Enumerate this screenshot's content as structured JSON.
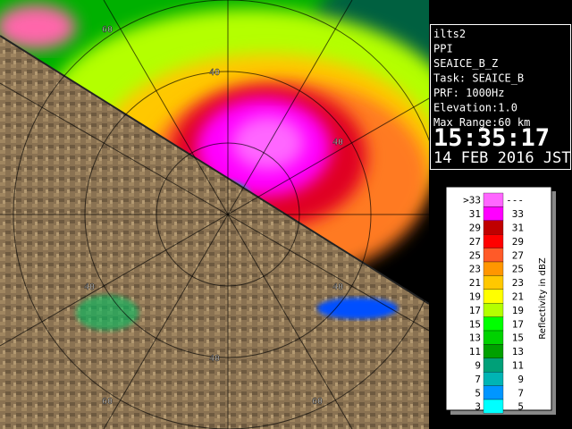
{
  "info": {
    "lines": [
      "ilts2",
      "PPI",
      "SEAICE_B_Z",
      "Task: SEAICE_B",
      "PRF: 1000Hz",
      "Elevation:1.0",
      "Max Range:60 km"
    ],
    "time": "15:35:17",
    "date": "14 FEB 2016 JST"
  },
  "ring_labels": [
    "60",
    "40",
    "40",
    "40",
    "40",
    "40",
    "60",
    "60"
  ],
  "legend": {
    "title": "Reflectivity in dBZ",
    "rows": [
      {
        "low": ">33",
        "high": "---",
        "color": "#ff66ff"
      },
      {
        "low": "31",
        "high": "33",
        "color": "#ff00ff"
      },
      {
        "low": "29",
        "high": "31",
        "color": "#c00000"
      },
      {
        "low": "27",
        "high": "29",
        "color": "#ff0000"
      },
      {
        "low": "25",
        "high": "27",
        "color": "#ff5a28"
      },
      {
        "low": "23",
        "high": "25",
        "color": "#ff9600"
      },
      {
        "low": "21",
        "high": "23",
        "color": "#ffc800"
      },
      {
        "low": "19",
        "high": "21",
        "color": "#ffff00"
      },
      {
        "low": "17",
        "high": "19",
        "color": "#b4ff00"
      },
      {
        "low": "15",
        "high": "17",
        "color": "#00ff00"
      },
      {
        "low": "13",
        "high": "15",
        "color": "#00d200"
      },
      {
        "low": "11",
        "high": "13",
        "color": "#00a000"
      },
      {
        "low": "9",
        "high": "11",
        "color": "#00a078"
      },
      {
        "low": "7",
        "high": "9",
        "color": "#00b4b4"
      },
      {
        "low": "5",
        "high": "7",
        "color": "#0096ff"
      },
      {
        "low": "3",
        "high": "5",
        "color": "#00ffff"
      }
    ]
  }
}
